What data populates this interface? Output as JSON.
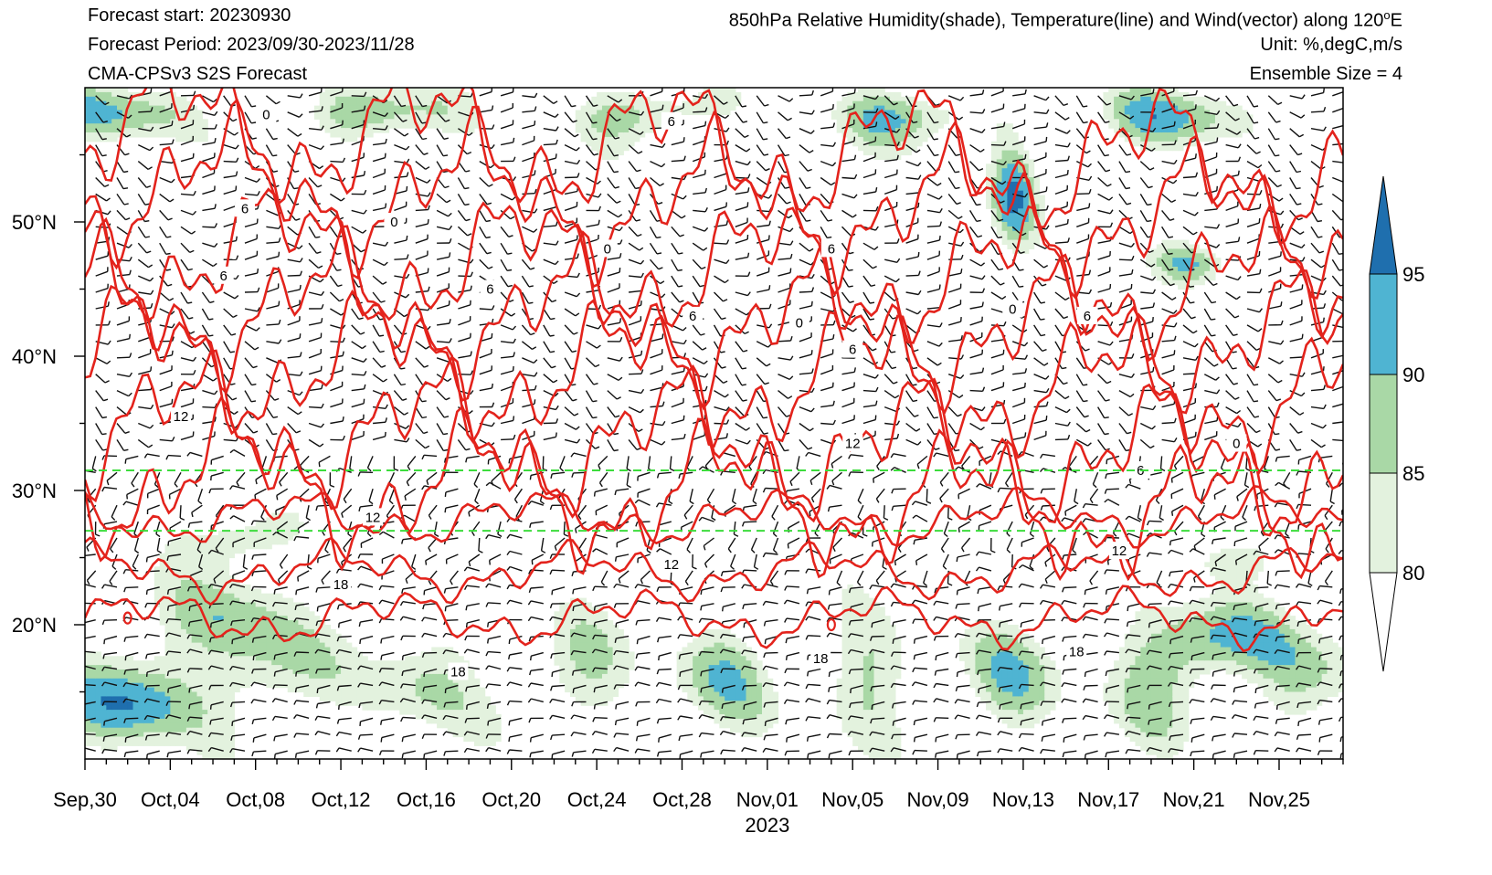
{
  "header": {
    "forecast_start": "Forecast start: 20230930",
    "forecast_period": "Forecast Period: 2023/09/30-2023/11/28",
    "model": "CMA-CPSv3 S2S Forecast",
    "title": "850hPa Relative Humidity(shade), Temperature(line) and Wind(vector) along 120",
    "title_sup": "o",
    "title_end": "E",
    "unit": "Unit: %,degC,m/s",
    "ensemble": "Ensemble Size = 4"
  },
  "chart_data": {
    "type": "heatmap",
    "title": "850hPa Relative Humidity(shade), Temperature(line) and Wind(vector) along 120°E",
    "xlabel": "2023",
    "x_ticks": [
      "Sep,30",
      "Oct,04",
      "Oct,08",
      "Oct,12",
      "Oct,16",
      "Oct,20",
      "Oct,24",
      "Oct,28",
      "Nov,01",
      "Nov,05",
      "Nov,09",
      "Nov,13",
      "Nov,17",
      "Nov,21",
      "Nov,25"
    ],
    "x_range_days": [
      0,
      59
    ],
    "y_ticks": [
      "20°N",
      "30°N",
      "40°N",
      "50°N"
    ],
    "y_tick_values": [
      20,
      30,
      40,
      50
    ],
    "ylim": [
      10,
      60
    ],
    "colorbar": {
      "levels": [
        80,
        85,
        90,
        95
      ],
      "labels": [
        "80",
        "85",
        "90",
        "95"
      ],
      "colors": [
        "#ffffff",
        "#e3f2de",
        "#a9d8a6",
        "#4fb4d2",
        "#1f6fae"
      ]
    },
    "temperature_contour_labels": [
      "0",
      "6",
      "12",
      "18"
    ],
    "reference_lines_lat": [
      31.5,
      27
    ]
  }
}
